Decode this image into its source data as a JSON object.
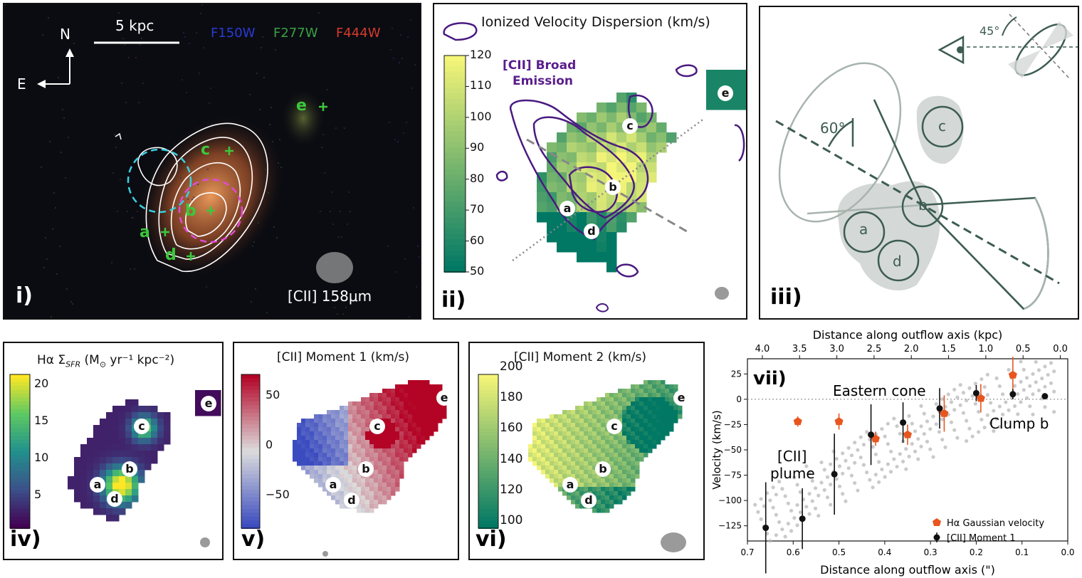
{
  "panels": {
    "p1": {
      "label": "i)",
      "north": "N",
      "east": "E",
      "scalebar": "5 kpc",
      "filters": [
        {
          "name": "F150W",
          "color": "#2a3ad6"
        },
        {
          "name": "F277W",
          "color": "#3aa043"
        },
        {
          "name": "F444W",
          "color": "#d63a2a"
        }
      ],
      "beam_label": "[CII] 158μm",
      "clumps": [
        "a",
        "b",
        "c",
        "d",
        "e"
      ]
    },
    "p2": {
      "label": "ii)",
      "title": "Ionized Velocity Dispersion (km/s)",
      "contour_label": "[CII] Broad Emission",
      "contour_label_l1": "[CII] Broad",
      "contour_label_l2": "Emission",
      "colorbar_ticks": [
        "120",
        "110",
        "100",
        "90",
        "80",
        "70",
        "60",
        "50"
      ],
      "clumps": [
        "a",
        "b",
        "c",
        "d",
        "e"
      ]
    },
    "p3": {
      "label": "iii)",
      "angle_open": "60°",
      "angle_incl": "45°",
      "clumps": [
        "a",
        "b",
        "c",
        "d"
      ]
    },
    "p4": {
      "label": "iv)",
      "title": "Hα Σ",
      "title_sub": "SFR",
      "title_rest": " (M",
      "title_sun": "⊙",
      "title_units": " yr⁻¹ kpc⁻²)",
      "colorbar_ticks": [
        "20",
        "15",
        "10",
        "5"
      ],
      "clumps": [
        "a",
        "b",
        "c",
        "d",
        "e"
      ]
    },
    "p5": {
      "label": "v)",
      "title": "[CII] Moment 1 (km/s)",
      "colorbar_ticks": [
        "50",
        "0",
        "−50"
      ],
      "clumps": [
        "a",
        "b",
        "c",
        "d",
        "e"
      ]
    },
    "p6": {
      "label": "vi)",
      "title": "[CII] Moment 2 (km/s)",
      "colorbar_ticks": [
        "200",
        "180",
        "160",
        "140",
        "120",
        "100"
      ],
      "clumps": [
        "a",
        "b",
        "c",
        "d",
        "e"
      ]
    }
  },
  "chart_data": {
    "type": "scatter",
    "label": "vii)",
    "xlabel": "Distance along outflow axis (\")",
    "xlabel_top": "Distance along outflow axis (kpc)",
    "ylabel": "Velocity (km/s)",
    "xlim": [
      0.7,
      0.0
    ],
    "ylim": [
      -140,
      40
    ],
    "x_ticks": [
      "0.7",
      "0.6",
      "0.5",
      "0.4",
      "0.3",
      "0.2",
      "0.1",
      "0.0"
    ],
    "x_top_ticks": [
      "4.0",
      "3.5",
      "3.0",
      "2.5",
      "2.0",
      "1.5",
      "1.0",
      "0.5",
      "0.0"
    ],
    "y_ticks": [
      "25",
      "0",
      "−25",
      "−50",
      "−75",
      "−100",
      "−125"
    ],
    "annotations": [
      "Eastern cone",
      "Clump b",
      "[CII]",
      "plume"
    ],
    "series": [
      {
        "name": "Hα Gaussian velocity",
        "color": "#e8561f",
        "points": [
          {
            "x": 0.59,
            "y": -22,
            "err": 5
          },
          {
            "x": 0.5,
            "y": -22,
            "err": 8
          },
          {
            "x": 0.42,
            "y": -39,
            "err": 7
          },
          {
            "x": 0.35,
            "y": -35,
            "err": 10
          },
          {
            "x": 0.27,
            "y": -14,
            "err": 18
          },
          {
            "x": 0.19,
            "y": 1,
            "err": 14
          },
          {
            "x": 0.12,
            "y": 24,
            "err": 18
          }
        ]
      },
      {
        "name": "[CII] Moment 1",
        "color": "#111111",
        "points": [
          {
            "x": 0.66,
            "y": -127,
            "err": 45
          },
          {
            "x": 0.58,
            "y": -118,
            "err": 30
          },
          {
            "x": 0.51,
            "y": -74,
            "err": 40
          },
          {
            "x": 0.43,
            "y": -35,
            "err": 30
          },
          {
            "x": 0.36,
            "y": -23,
            "err": 20
          },
          {
            "x": 0.28,
            "y": -9,
            "err": 20
          },
          {
            "x": 0.2,
            "y": 6,
            "err": 8
          },
          {
            "x": 0.12,
            "y": 5,
            "err": 5
          },
          {
            "x": 0.05,
            "y": 3,
            "err": 2
          }
        ]
      }
    ]
  }
}
